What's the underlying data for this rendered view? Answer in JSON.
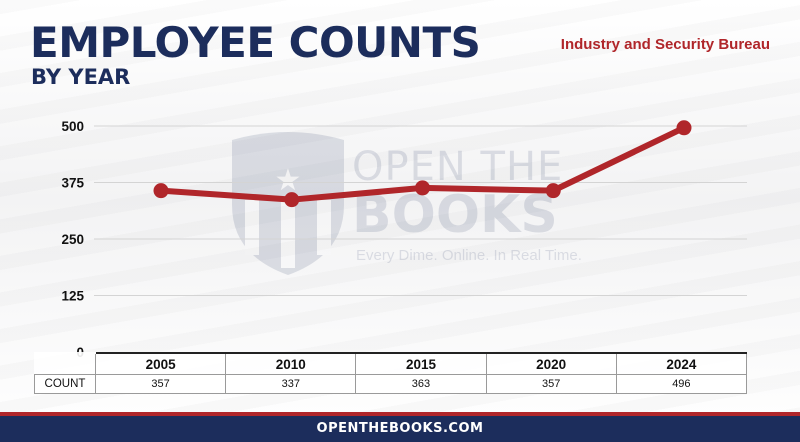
{
  "header": {
    "title": "EMPLOYEE COUNTS",
    "subtitle": "BY YEAR",
    "agency": "Industry and Security Bureau"
  },
  "watermark": {
    "line1": "OPEN THE",
    "line2": "BOOKS",
    "tagline": "Every Dime. Online. In Real Time."
  },
  "chart_data": {
    "type": "line",
    "categories": [
      "2005",
      "2010",
      "2015",
      "2020",
      "2024"
    ],
    "series": [
      {
        "values": [
          357,
          337,
          363,
          357,
          496
        ],
        "color": "#b0262a"
      }
    ],
    "ylim": [
      0,
      500
    ],
    "yticks": [
      0,
      125,
      250,
      375,
      500
    ],
    "grid": true,
    "table": {
      "row_label": "COUNT",
      "values": [
        "357",
        "337",
        "363",
        "357",
        "496"
      ]
    }
  },
  "footer": {
    "text": "OPENTHEBOOKS.COM"
  },
  "colors": {
    "navy": "#1c2d5c",
    "red": "#b0262a"
  }
}
